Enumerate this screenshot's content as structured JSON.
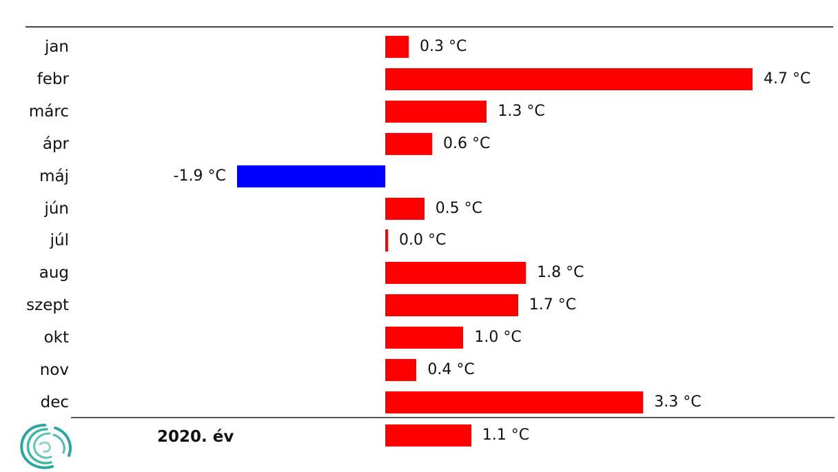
{
  "chart_data": {
    "type": "bar",
    "orientation": "horizontal",
    "categories": [
      "jan",
      "febr",
      "márc",
      "ápr",
      "máj",
      "jún",
      "júl",
      "aug",
      "szept",
      "okt",
      "nov",
      "dec"
    ],
    "values": [
      0.3,
      4.7,
      1.3,
      0.6,
      -1.9,
      0.5,
      0.0,
      1.8,
      1.7,
      1.0,
      0.4,
      3.3
    ],
    "value_labels": [
      "0.3 °C",
      "4.7 °C",
      "1.3 °C",
      "0.6 °C",
      "-1.9 °C",
      "0.5 °C",
      "0.0 °C",
      "1.8 °C",
      "1.7 °C",
      "1.0 °C",
      "0.4 °C",
      "3.3 °C"
    ],
    "summary": {
      "label": "2020. év",
      "value": 1.1,
      "value_label": "1.1 °C"
    },
    "xlim": [
      -2.3,
      5.5
    ],
    "colors": {
      "positive": "#ff0000",
      "negative": "#0000ff"
    },
    "grid": false,
    "legend": "none"
  }
}
